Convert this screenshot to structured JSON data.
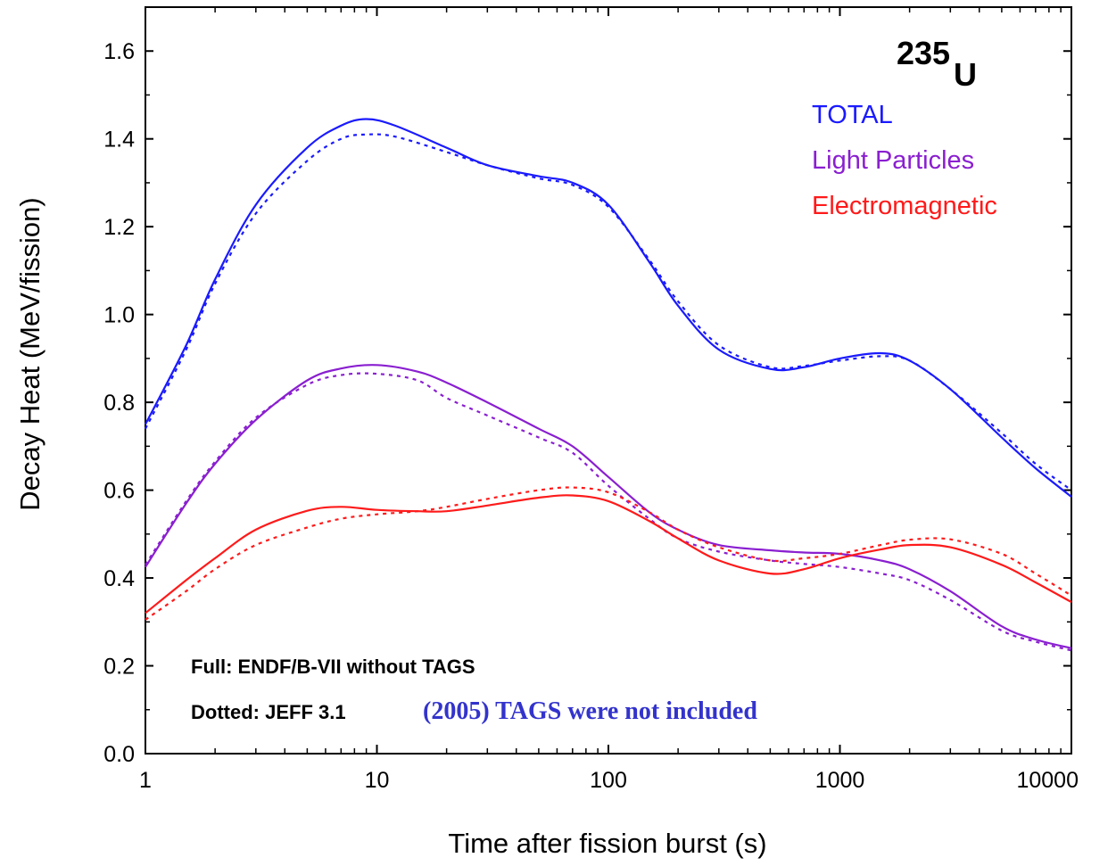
{
  "chart_data": {
    "type": "line",
    "xlabel": "Time after fission burst (s)",
    "ylabel": "Decay Heat (MeV/fission)",
    "x_scale": "log",
    "xlim": [
      1,
      10000
    ],
    "ylim": [
      0.0,
      1.7
    ],
    "x_ticks": [
      "1",
      "10",
      "100",
      "1000",
      "10000"
    ],
    "y_ticks": [
      "0.0",
      "0.2",
      "0.4",
      "0.6",
      "0.8",
      "1.0",
      "1.2",
      "1.4",
      "1.6"
    ],
    "isotope": {
      "mass": "235",
      "symbol": "U"
    },
    "legend": [
      {
        "label": "TOTAL",
        "color": "#1a1aff"
      },
      {
        "label": "Light Particles",
        "color": "#8a1fd0"
      },
      {
        "label": "Electromagnetic",
        "color": "#ff1a1a"
      }
    ],
    "notes": {
      "full": "Full: ENDF/B-VII without TAGS",
      "dotted": "Dotted: JEFF 3.1",
      "comment": "(2005) TAGS were not included",
      "comment_color": "#3333cc"
    },
    "series": [
      {
        "group": "TOTAL",
        "style": "solid",
        "color": "#1a1aff",
        "x": [
          1,
          1.5,
          2,
          3,
          5,
          7,
          9,
          12,
          20,
          30,
          50,
          70,
          100,
          150,
          200,
          300,
          500,
          700,
          1000,
          1500,
          2000,
          3000,
          5000,
          7000,
          10000
        ],
        "y": [
          0.75,
          0.93,
          1.08,
          1.25,
          1.38,
          1.43,
          1.445,
          1.43,
          1.38,
          1.34,
          1.315,
          1.3,
          1.25,
          1.12,
          1.02,
          0.92,
          0.876,
          0.88,
          0.9,
          0.912,
          0.895,
          0.83,
          0.72,
          0.65,
          0.585
        ]
      },
      {
        "group": "TOTAL",
        "style": "dotted",
        "color": "#1a1aff",
        "x": [
          1,
          1.5,
          2,
          3,
          5,
          7,
          9,
          12,
          20,
          30,
          50,
          70,
          100,
          150,
          200,
          300,
          500,
          700,
          1000,
          1500,
          2000,
          3000,
          5000,
          7000,
          10000
        ],
        "y": [
          0.74,
          0.92,
          1.07,
          1.23,
          1.35,
          1.4,
          1.41,
          1.405,
          1.37,
          1.34,
          1.31,
          1.295,
          1.245,
          1.125,
          1.03,
          0.93,
          0.88,
          0.883,
          0.895,
          0.905,
          0.895,
          0.83,
          0.73,
          0.66,
          0.6
        ]
      },
      {
        "group": "Light Particles",
        "style": "solid",
        "color": "#8a1fd0",
        "x": [
          1,
          1.5,
          2,
          3,
          5,
          7,
          10,
          15,
          20,
          30,
          50,
          70,
          100,
          150,
          200,
          300,
          500,
          700,
          1000,
          1500,
          2000,
          3000,
          5000,
          7000,
          10000
        ],
        "y": [
          0.425,
          0.57,
          0.66,
          0.76,
          0.85,
          0.877,
          0.885,
          0.87,
          0.845,
          0.8,
          0.74,
          0.7,
          0.63,
          0.55,
          0.51,
          0.475,
          0.463,
          0.458,
          0.455,
          0.44,
          0.42,
          0.37,
          0.29,
          0.26,
          0.24
        ]
      },
      {
        "group": "Light Particles",
        "style": "dotted",
        "color": "#8a1fd0",
        "x": [
          1,
          1.5,
          2,
          3,
          5,
          7,
          10,
          15,
          20,
          30,
          50,
          70,
          100,
          150,
          200,
          300,
          500,
          700,
          1000,
          1500,
          2000,
          3000,
          5000,
          7000,
          10000
        ],
        "y": [
          0.43,
          0.575,
          0.665,
          0.765,
          0.84,
          0.862,
          0.865,
          0.85,
          0.81,
          0.77,
          0.72,
          0.685,
          0.61,
          0.535,
          0.49,
          0.46,
          0.44,
          0.432,
          0.425,
          0.41,
          0.395,
          0.35,
          0.28,
          0.255,
          0.235
        ]
      },
      {
        "group": "Electromagnetic",
        "style": "solid",
        "color": "#ff1a1a",
        "x": [
          1,
          1.5,
          2,
          3,
          5,
          7,
          10,
          15,
          20,
          30,
          50,
          70,
          100,
          150,
          200,
          300,
          500,
          700,
          1000,
          1500,
          2000,
          3000,
          5000,
          7000,
          10000
        ],
        "y": [
          0.32,
          0.395,
          0.445,
          0.51,
          0.553,
          0.562,
          0.555,
          0.552,
          0.552,
          0.565,
          0.583,
          0.588,
          0.575,
          0.53,
          0.49,
          0.44,
          0.41,
          0.42,
          0.445,
          0.465,
          0.475,
          0.47,
          0.43,
          0.39,
          0.345
        ]
      },
      {
        "group": "Electromagnetic",
        "style": "dotted",
        "color": "#ff1a1a",
        "x": [
          1,
          1.5,
          2,
          3,
          5,
          7,
          10,
          15,
          20,
          30,
          50,
          70,
          100,
          150,
          200,
          300,
          500,
          700,
          1000,
          1500,
          2000,
          3000,
          5000,
          7000,
          10000
        ],
        "y": [
          0.305,
          0.37,
          0.42,
          0.475,
          0.515,
          0.535,
          0.545,
          0.552,
          0.562,
          0.58,
          0.6,
          0.606,
          0.595,
          0.55,
          0.51,
          0.47,
          0.44,
          0.445,
          0.455,
          0.475,
          0.487,
          0.488,
          0.455,
          0.41,
          0.36
        ]
      }
    ]
  }
}
